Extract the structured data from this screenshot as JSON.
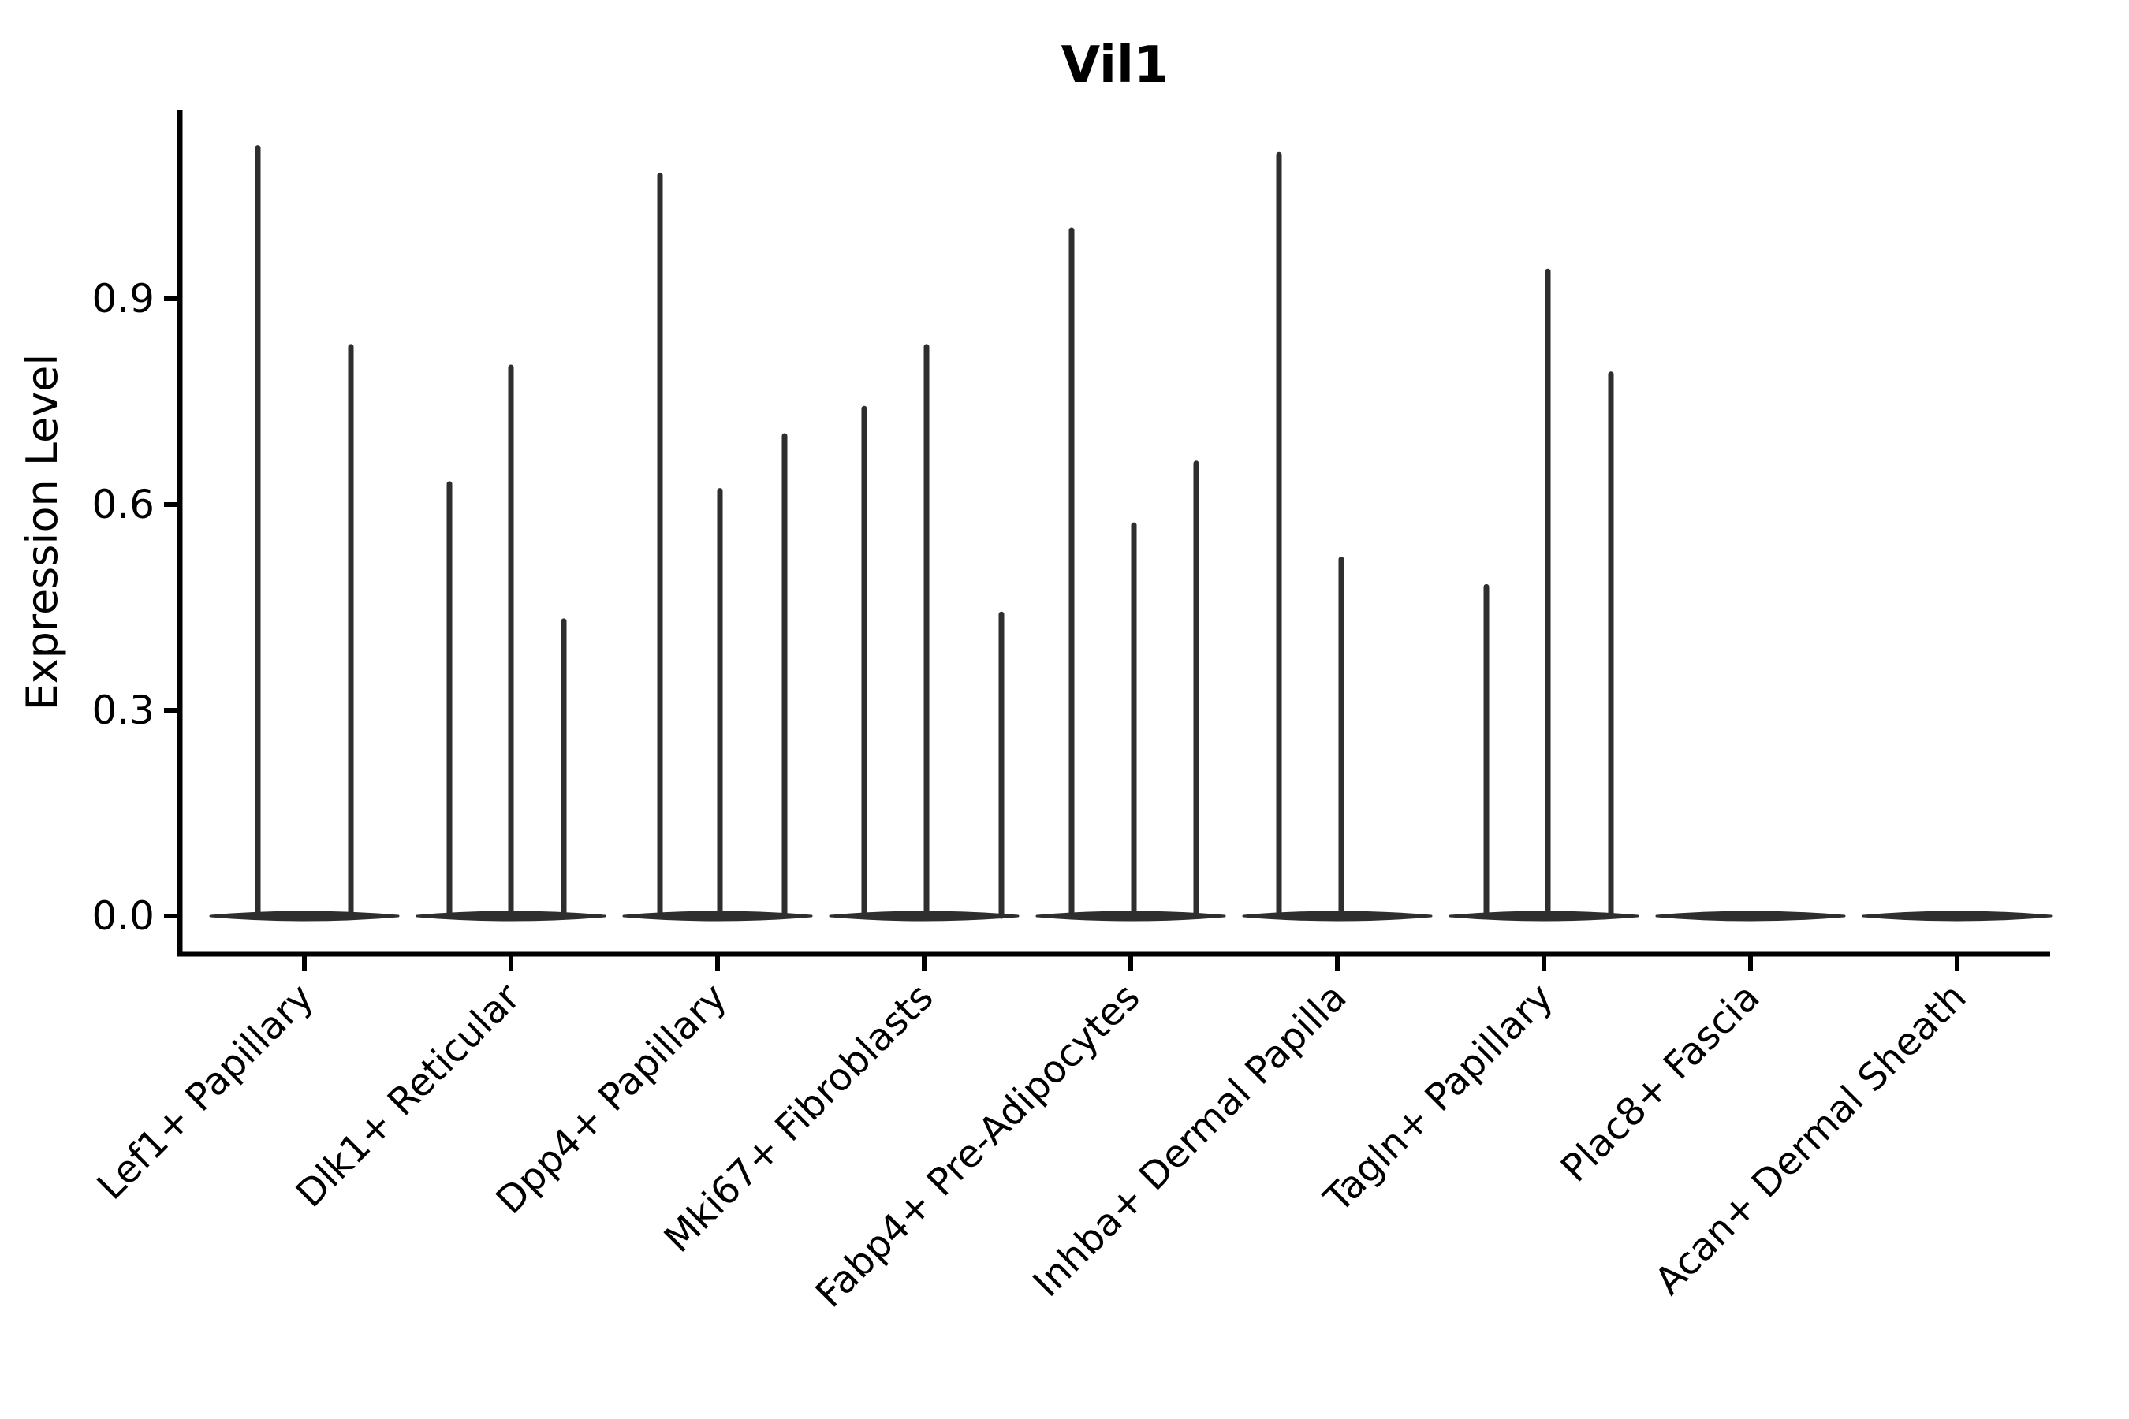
{
  "figure": {
    "title": "Vil1",
    "ylabel": "Expression Level"
  },
  "chart_data": {
    "type": "violin",
    "title": "Vil1",
    "xlabel": "",
    "ylabel": "Expression Level",
    "grid": false,
    "legend": "none",
    "background": "#ffffff",
    "axis_color": "#000000",
    "violin_color": "#2e2e2e",
    "ylim": [
      0.0,
      1.17
    ],
    "ytick_labels": [
      "0.0",
      "0.3",
      "0.6",
      "0.9"
    ],
    "ytick_values": [
      0.0,
      0.3,
      0.6,
      0.9
    ],
    "categories": [
      "Lef1+ Papillary",
      "Dlk1+ Reticular",
      "Dpp4+ Papillary",
      "Mki67+ Fibroblasts",
      "Fabp4+ Pre-Adipocytes",
      "Inhba+ Dermal Papilla",
      "Tagln+ Papillary",
      "Plac8+ Fascia",
      "Acan+ Dermal Sheath"
    ],
    "series": [
      {
        "category": "Lef1+ Papillary",
        "violins": [
          {
            "dx": -59,
            "peak": 1.12
          },
          {
            "dx": 59,
            "peak": 0.83
          }
        ]
      },
      {
        "category": "Dlk1+ Reticular",
        "violins": [
          {
            "dx": -78,
            "peak": 0.63
          },
          {
            "dx": 0,
            "peak": 0.8
          },
          {
            "dx": 67,
            "peak": 0.43
          }
        ]
      },
      {
        "category": "Dpp4+ Papillary",
        "violins": [
          {
            "dx": -73,
            "peak": 1.08
          },
          {
            "dx": 3,
            "peak": 0.62
          },
          {
            "dx": 85,
            "peak": 0.7
          }
        ]
      },
      {
        "category": "Mki67+ Fibroblasts",
        "violins": [
          {
            "dx": -76,
            "peak": 0.74
          },
          {
            "dx": 3,
            "peak": 0.83
          },
          {
            "dx": 98,
            "peak": 0.44
          }
        ]
      },
      {
        "category": "Fabp4+ Pre-Adipocytes",
        "violins": [
          {
            "dx": -75,
            "peak": 1.0
          },
          {
            "dx": 4,
            "peak": 0.57
          },
          {
            "dx": 83,
            "peak": 0.66
          }
        ]
      },
      {
        "category": "Inhba+ Dermal Papilla",
        "violins": [
          {
            "dx": -74,
            "peak": 1.11
          },
          {
            "dx": 5,
            "peak": 0.52
          }
        ]
      },
      {
        "category": "Tagln+ Papillary",
        "violins": [
          {
            "dx": -73,
            "peak": 0.48
          },
          {
            "dx": 5,
            "peak": 0.94
          },
          {
            "dx": 85,
            "peak": 0.79
          }
        ]
      },
      {
        "category": "Plac8+ Fascia",
        "violins": []
      },
      {
        "category": "Acan+ Dermal Sheath",
        "violins": []
      }
    ]
  }
}
